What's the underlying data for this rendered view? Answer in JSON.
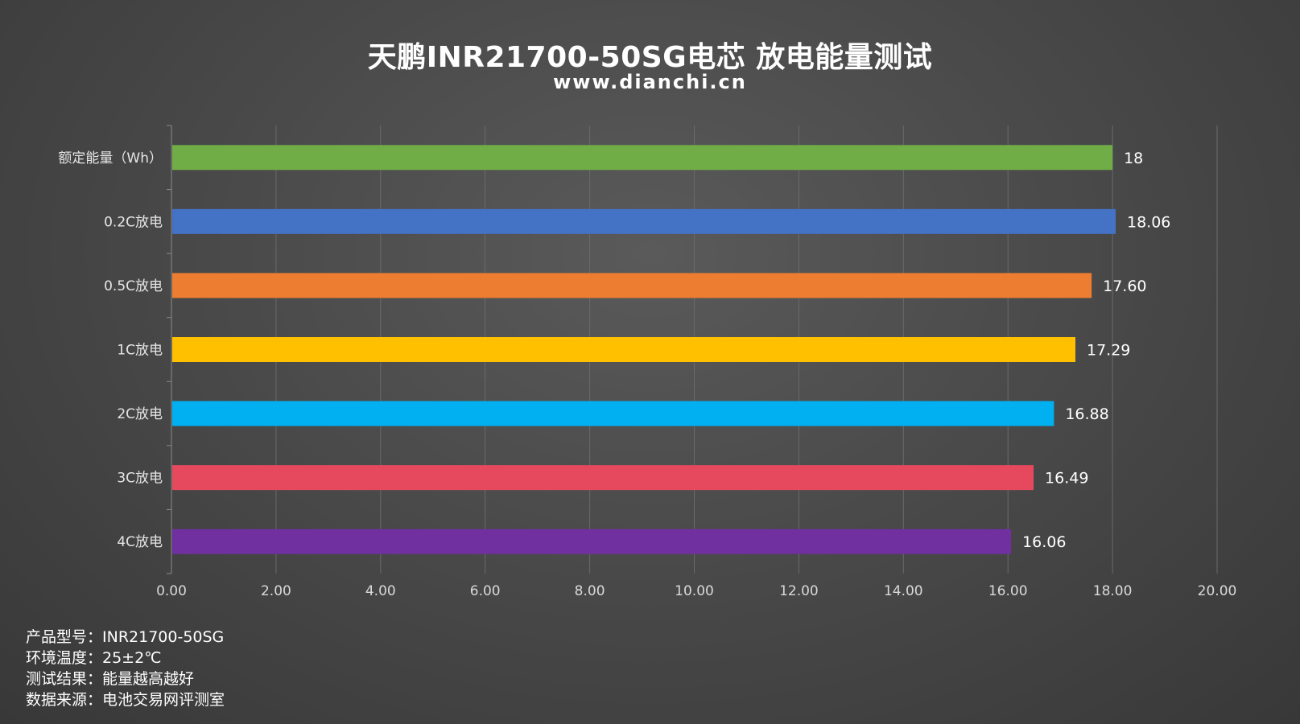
{
  "chart_data": {
    "type": "bar",
    "orientation": "horizontal",
    "title": "天鹏INR21700-50SG电芯 放电能量测试",
    "subtitle": "www.dianchi.cn",
    "categories": [
      "额定能量（Wh）",
      "0.2C放电",
      "0.5C放电",
      "1C放电",
      "2C放电",
      "3C放电",
      "4C放电"
    ],
    "values": [
      18,
      18.06,
      17.6,
      17.29,
      16.88,
      16.49,
      16.06
    ],
    "value_labels": [
      "18",
      "18.06",
      "17.60",
      "17.29",
      "16.88",
      "16.49",
      "16.06"
    ],
    "colors": [
      "#70AD47",
      "#4472C4",
      "#ED7D31",
      "#FFC000",
      "#00B0F0",
      "#E6495E",
      "#7030A0"
    ],
    "xlim": [
      0,
      20
    ],
    "x_ticks": [
      "0.00",
      "2.00",
      "4.00",
      "6.00",
      "8.00",
      "10.00",
      "12.00",
      "14.00",
      "16.00",
      "18.00",
      "20.00"
    ],
    "grid": true,
    "legend": "none"
  },
  "notes": [
    "产品型号：INR21700-50SG",
    "环境温度：25±2℃",
    "测试结果：能量越高越好",
    "数据来源：电池交易网评测室"
  ],
  "colors": {
    "gridline": "#6a6a6a",
    "axis": "#8a8a8a"
  }
}
